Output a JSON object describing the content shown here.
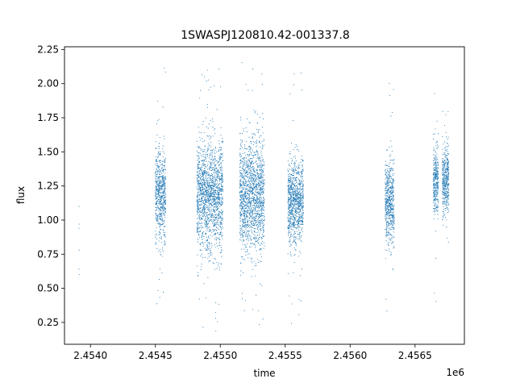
{
  "chart_data": {
    "type": "scatter",
    "title": "1SWASPJ120810.42-001337.8",
    "xlabel": "time",
    "ylabel": "flux",
    "x_offset_label": "1e6",
    "xlim": [
      2453800,
      2456880
    ],
    "ylim": [
      0.09,
      2.27
    ],
    "x_ticks": [
      {
        "value": 2454000,
        "label": "2.4540"
      },
      {
        "value": 2454500,
        "label": "2.4545"
      },
      {
        "value": 2455000,
        "label": "2.4550"
      },
      {
        "value": 2455500,
        "label": "2.4555"
      },
      {
        "value": 2456000,
        "label": "2.4560"
      },
      {
        "value": 2456500,
        "label": "2.4565"
      }
    ],
    "y_ticks": [
      {
        "value": 0.25,
        "label": "0.25"
      },
      {
        "value": 0.5,
        "label": "0.50"
      },
      {
        "value": 0.75,
        "label": "0.75"
      },
      {
        "value": 1.0,
        "label": "1.00"
      },
      {
        "value": 1.25,
        "label": "1.25"
      },
      {
        "value": 1.5,
        "label": "1.50"
      },
      {
        "value": 1.75,
        "label": "1.75"
      },
      {
        "value": 2.0,
        "label": "2.00"
      },
      {
        "value": 2.25,
        "label": "2.25"
      }
    ],
    "marker_color": "#1f77b4",
    "grid": false,
    "legend": "none",
    "series": [
      {
        "seasons": [
          {
            "x_range": [
              2453910,
              2453915
            ],
            "points": [
              [
                2453912,
                1.1
              ],
              [
                2453913,
                0.97
              ],
              [
                2453912,
                0.94
              ],
              [
                2453913,
                0.78
              ],
              [
                2453912,
                0.64
              ],
              [
                2453913,
                0.6
              ]
            ]
          },
          {
            "x_range": [
              2454500,
              2454580
            ],
            "flux_center": 1.18,
            "flux_spread": 0.17,
            "flux_min": 0.32,
            "flux_max": 2.16
          },
          {
            "x_range": [
              2454820,
              2455020
            ],
            "flux_center": 1.18,
            "flux_spread": 0.2,
            "flux_min": 0.18,
            "flux_max": 2.15
          },
          {
            "x_range": [
              2455150,
              2455340
            ],
            "flux_center": 1.17,
            "flux_spread": 0.21,
            "flux_min": 0.2,
            "flux_max": 2.16
          },
          {
            "x_range": [
              2455520,
              2455640
            ],
            "flux_center": 1.14,
            "flux_spread": 0.15,
            "flux_min": 0.21,
            "flux_max": 2.12
          },
          {
            "x_range": [
              2456270,
              2456340
            ],
            "flux_center": 1.13,
            "flux_spread": 0.16,
            "flux_min": 0.2,
            "flux_max": 2.12
          },
          {
            "x_range": [
              2456640,
              2456680
            ],
            "flux_center": 1.28,
            "flux_spread": 0.13,
            "flux_min": 0.27,
            "flux_max": 2.08
          },
          {
            "x_range": [
              2456710,
              2456760
            ],
            "flux_center": 1.28,
            "flux_spread": 0.12,
            "flux_min": 0.8,
            "flux_max": 1.8
          }
        ]
      }
    ]
  }
}
